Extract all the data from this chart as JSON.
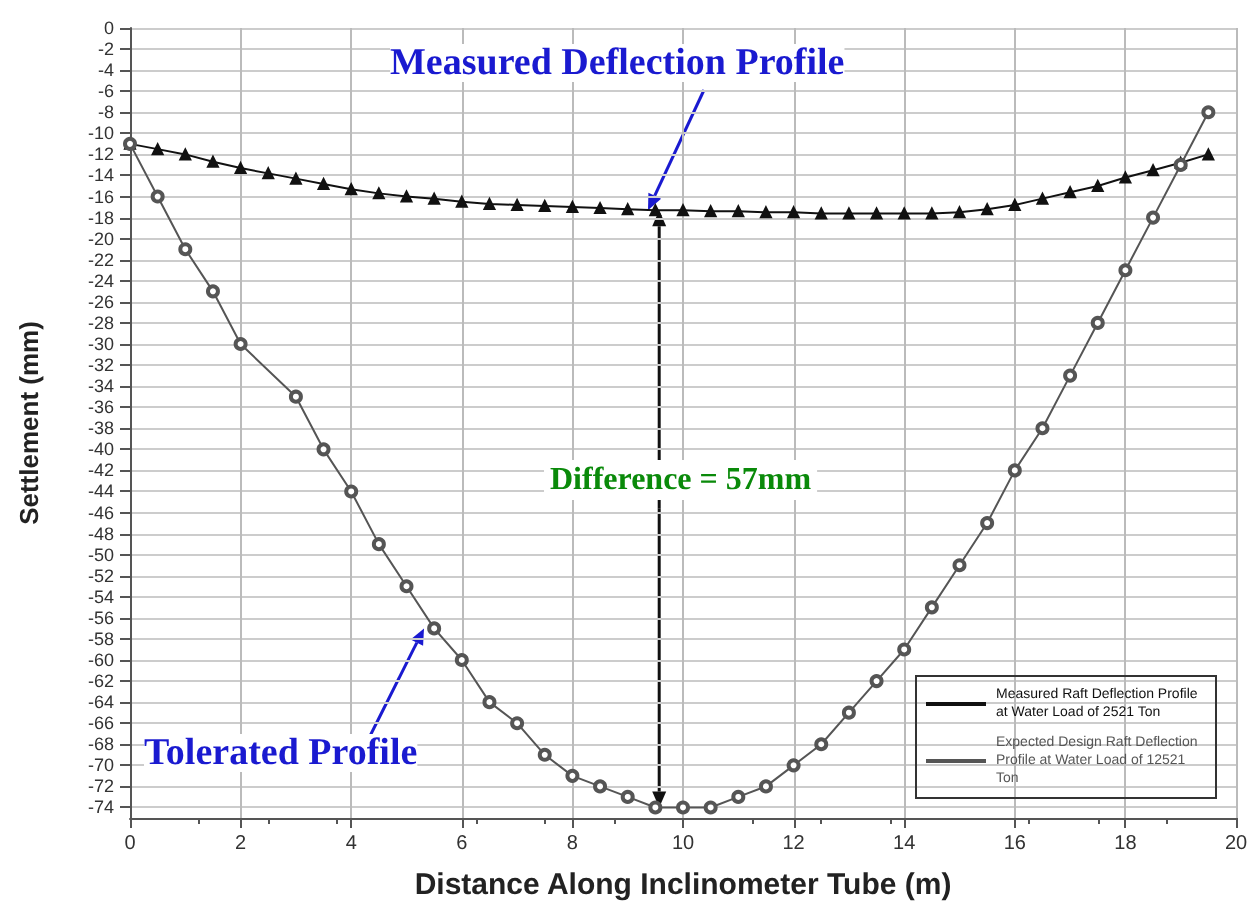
{
  "chart_data": {
    "type": "line",
    "xlabel": "Distance Along Inclinometer Tube (m)",
    "ylabel": "Settlement (mm)",
    "annotations": [
      {
        "text": "Measured Deflection Profile",
        "x": 9.5,
        "y": -17.3
      },
      {
        "text": "Tolerated Profile",
        "x": 5.5,
        "y": -57
      },
      {
        "text": "Difference = 57mm",
        "x": 9.7,
        "y": -17.3
      }
    ],
    "xlim": [
      0,
      20
    ],
    "xticks": [
      0,
      2,
      4,
      6,
      8,
      10,
      12,
      14,
      16,
      18,
      20
    ],
    "ylim": [
      -75,
      0
    ],
    "yticks": [
      0,
      -2,
      -4,
      -6,
      -8,
      -10,
      -12,
      -14,
      -16,
      -18,
      -20,
      -22,
      -24,
      -26,
      -28,
      -30,
      -32,
      -34,
      -36,
      -38,
      -40,
      -42,
      -44,
      -46,
      -48,
      -50,
      -52,
      -54,
      -56,
      -58,
      -60,
      -62,
      -64,
      -66,
      -68,
      -70,
      -72,
      -74
    ],
    "grid": true,
    "legend": "bottom right",
    "line_style": "solid",
    "series": [
      {
        "name": "Measured Raft Deflection Profile at Water Load of 2521 Ton",
        "color": "#111111",
        "marker": "triangle",
        "x": [
          0,
          0.5,
          1,
          1.5,
          2,
          2.5,
          3,
          3.5,
          4,
          4.5,
          5,
          5.5,
          6,
          6.5,
          7,
          7.5,
          8,
          8.5,
          9,
          9.5,
          10,
          10.5,
          11,
          11.5,
          12,
          12.5,
          13,
          13.5,
          14,
          14.5,
          15,
          15.5,
          16,
          16.5,
          17,
          17.5,
          18,
          18.5,
          19,
          19.5
        ],
        "values": [
          -11,
          -11.5,
          -12,
          -12.7,
          -13.3,
          -13.8,
          -14.3,
          -14.8,
          -15.3,
          -15.7,
          -16,
          -16.2,
          -16.5,
          -16.7,
          -16.8,
          -16.9,
          -17,
          -17.1,
          -17.2,
          -17.3,
          -17.3,
          -17.4,
          -17.4,
          -17.5,
          -17.5,
          -17.6,
          -17.6,
          -17.6,
          -17.6,
          -17.6,
          -17.5,
          -17.2,
          -16.8,
          -16.2,
          -15.6,
          -15,
          -14.2,
          -13.5,
          -12.8,
          -12
        ]
      },
      {
        "name": "Expected Design Raft Deflection Profile at Water Load of 12521 Ton",
        "color": "#555555",
        "marker": "circle",
        "x": [
          0,
          0.5,
          1,
          1.5,
          2,
          3,
          3.5,
          4,
          4.5,
          5,
          5.5,
          6,
          6.5,
          7,
          7.5,
          8,
          8.5,
          9,
          9.5,
          10,
          10.5,
          11,
          11.5,
          12,
          12.5,
          13,
          13.5,
          14,
          14.5,
          15,
          15.5,
          16,
          16.5,
          17,
          17.5,
          18,
          18.5,
          19,
          19.5
        ],
        "values": [
          -11,
          -16,
          -21,
          -25,
          -30,
          -35,
          -40,
          -44,
          -49,
          -53,
          -57,
          -60,
          -64,
          -66,
          -69,
          -71,
          -72,
          -73,
          -74,
          -74,
          -74,
          -73,
          -72,
          -70,
          -68,
          -65,
          -62,
          -59,
          -55,
          -51,
          -47,
          -42,
          -38,
          -33,
          -28,
          -23,
          -18,
          -13,
          -8
        ]
      }
    ]
  }
}
